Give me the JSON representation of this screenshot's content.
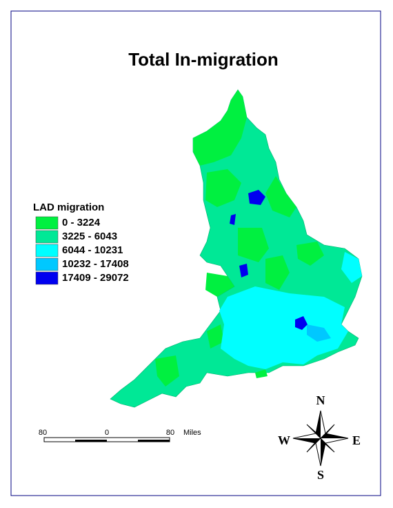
{
  "title": "Total In-migration",
  "legend": {
    "title": "LAD migration",
    "items": [
      {
        "label": "0 - 3224",
        "color": "#00f040"
      },
      {
        "label": "3225 - 6043",
        "color": "#00e896"
      },
      {
        "label": "6044 - 10231",
        "color": "#00ffff"
      },
      {
        "label": "10232 - 17408",
        "color": "#00c8ff"
      },
      {
        "label": "17409 - 29072",
        "color": "#0000f0"
      }
    ]
  },
  "scale_bar": {
    "labels": [
      "80",
      "0",
      "80"
    ],
    "unit": "Miles"
  },
  "compass": {
    "north": "N",
    "west": "W",
    "east": "E",
    "south": "S"
  }
}
